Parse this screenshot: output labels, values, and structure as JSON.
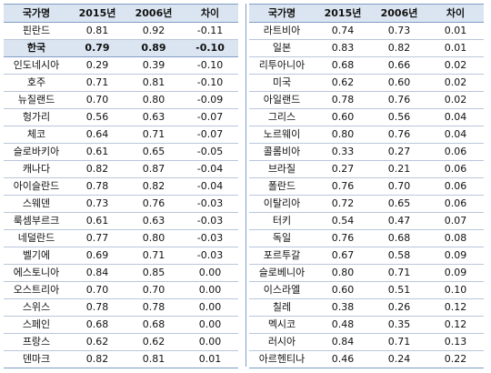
{
  "headers": {
    "country": "국가명",
    "y2015": "2015년",
    "y2006": "2006년",
    "diff": "차이"
  },
  "left_rows": [
    {
      "country": "핀란드",
      "y2015": "0.81",
      "y2006": "0.92",
      "diff": "-0.11"
    },
    {
      "country": "한국",
      "y2015": "0.79",
      "y2006": "0.89",
      "diff": "-0.10"
    },
    {
      "country": "인도네시아",
      "y2015": "0.29",
      "y2006": "0.39",
      "diff": "-0.10"
    },
    {
      "country": "호주",
      "y2015": "0.71",
      "y2006": "0.81",
      "diff": "-0.10"
    },
    {
      "country": "뉴질랜드",
      "y2015": "0.70",
      "y2006": "0.80",
      "diff": "-0.09"
    },
    {
      "country": "헝가리",
      "y2015": "0.56",
      "y2006": "0.63",
      "diff": "-0.07"
    },
    {
      "country": "체코",
      "y2015": "0.64",
      "y2006": "0.71",
      "diff": "-0.07"
    },
    {
      "country": "슬로바키아",
      "y2015": "0.61",
      "y2006": "0.65",
      "diff": "-0.05"
    },
    {
      "country": "캐나다",
      "y2015": "0.82",
      "y2006": "0.87",
      "diff": "-0.04"
    },
    {
      "country": "아이슬란드",
      "y2015": "0.78",
      "y2006": "0.82",
      "diff": "-0.04"
    },
    {
      "country": "스웨덴",
      "y2015": "0.73",
      "y2006": "0.76",
      "diff": "-0.03"
    },
    {
      "country": "룩셈부르크",
      "y2015": "0.61",
      "y2006": "0.63",
      "diff": "-0.03"
    },
    {
      "country": "네덜란드",
      "y2015": "0.77",
      "y2006": "0.80",
      "diff": "-0.03"
    },
    {
      "country": "벨기에",
      "y2015": "0.69",
      "y2006": "0.71",
      "diff": "-0.03"
    },
    {
      "country": "에스토니아",
      "y2015": "0.84",
      "y2006": "0.85",
      "diff": "0.00"
    },
    {
      "country": "오스트리아",
      "y2015": "0.70",
      "y2006": "0.70",
      "diff": "0.00"
    },
    {
      "country": "스위스",
      "y2015": "0.78",
      "y2006": "0.78",
      "diff": "0.00"
    },
    {
      "country": "스페인",
      "y2015": "0.68",
      "y2006": "0.68",
      "diff": "0.00"
    },
    {
      "country": "프랑스",
      "y2015": "0.62",
      "y2006": "0.62",
      "diff": "0.00"
    },
    {
      "country": "덴마크",
      "y2015": "0.82",
      "y2006": "0.81",
      "diff": "0.01"
    }
  ],
  "right_rows": [
    {
      "country": "라트비아",
      "y2015": "0.74",
      "y2006": "0.73",
      "diff": "0.01"
    },
    {
      "country": "일본",
      "y2015": "0.83",
      "y2006": "0.82",
      "diff": "0.01"
    },
    {
      "country": "리투아니아",
      "y2015": "0.68",
      "y2006": "0.66",
      "diff": "0.02"
    },
    {
      "country": "미국",
      "y2015": "0.62",
      "y2006": "0.60",
      "diff": "0.02"
    },
    {
      "country": "아일랜드",
      "y2015": "0.78",
      "y2006": "0.76",
      "diff": "0.02"
    },
    {
      "country": "그리스",
      "y2015": "0.60",
      "y2006": "0.56",
      "diff": "0.04"
    },
    {
      "country": "노르웨이",
      "y2015": "0.80",
      "y2006": "0.76",
      "diff": "0.04"
    },
    {
      "country": "콜롬비아",
      "y2015": "0.33",
      "y2006": "0.27",
      "diff": "0.06"
    },
    {
      "country": "브라질",
      "y2015": "0.27",
      "y2006": "0.21",
      "diff": "0.06"
    },
    {
      "country": "폴란드",
      "y2015": "0.76",
      "y2006": "0.70",
      "diff": "0.06"
    },
    {
      "country": "이탈리아",
      "y2015": "0.72",
      "y2006": "0.65",
      "diff": "0.06"
    },
    {
      "country": "터키",
      "y2015": "0.54",
      "y2006": "0.47",
      "diff": "0.07"
    },
    {
      "country": "독일",
      "y2015": "0.76",
      "y2006": "0.68",
      "diff": "0.08"
    },
    {
      "country": "포르투갈",
      "y2015": "0.67",
      "y2006": "0.58",
      "diff": "0.09"
    },
    {
      "country": "슬로베니아",
      "y2015": "0.80",
      "y2006": "0.71",
      "diff": "0.09"
    },
    {
      "country": "이스라엘",
      "y2015": "0.60",
      "y2006": "0.51",
      "diff": "0.10"
    },
    {
      "country": "칠레",
      "y2015": "0.38",
      "y2006": "0.26",
      "diff": "0.12"
    },
    {
      "country": "멕시코",
      "y2015": "0.48",
      "y2006": "0.35",
      "diff": "0.12"
    },
    {
      "country": "러시아",
      "y2015": "0.84",
      "y2006": "0.71",
      "diff": "0.13"
    },
    {
      "country": "아르헨티나",
      "y2015": "0.46",
      "y2006": "0.24",
      "diff": "0.22"
    }
  ],
  "highlight": {
    "side": "left",
    "row": 1
  },
  "colors": {
    "header_bg": "#dbe5f1",
    "border": "#7f9cc4"
  }
}
